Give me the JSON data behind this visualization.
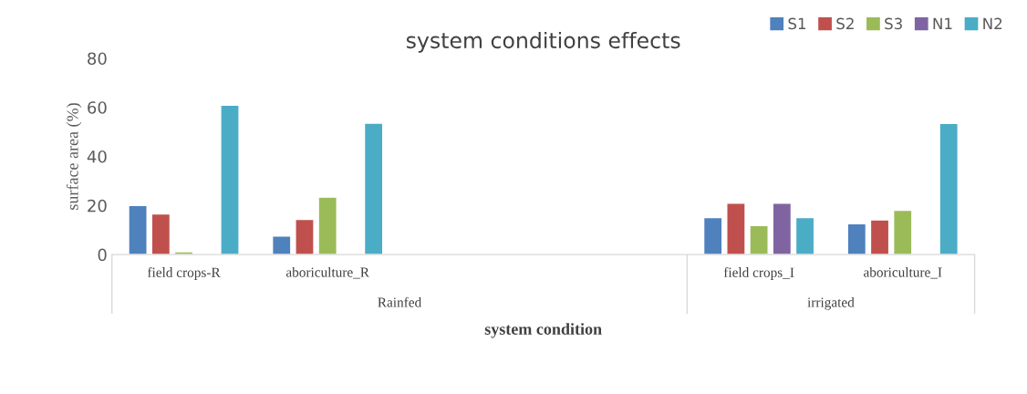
{
  "chart_data": {
    "type": "bar",
    "title": "system conditions effects",
    "ylabel": "surface area (%)",
    "xlabel": "system condition",
    "categories": [
      "field crops-R",
      "aboriculture_R",
      null,
      null,
      "field crops_I",
      "aboriculture_I"
    ],
    "series": [
      {
        "name": "S1",
        "color": "#4f81bd",
        "values": [
          20,
          7.5,
          null,
          null,
          15.1,
          12.6
        ]
      },
      {
        "name": "S2",
        "color": "#c0504d",
        "values": [
          16.6,
          14.3,
          null,
          null,
          20.9,
          14.1
        ]
      },
      {
        "name": "S3",
        "color": "#9bbb59",
        "values": [
          1.1,
          23.4,
          null,
          null,
          11.8,
          18
        ]
      },
      {
        "name": "N1",
        "color": "#8064a2",
        "values": [
          null,
          null,
          null,
          null,
          20.9,
          null
        ]
      },
      {
        "name": "N2",
        "color": "#4bacc6",
        "values": [
          60.9,
          53.6,
          null,
          null,
          15.1,
          53.5
        ]
      }
    ],
    "annotations": [
      "Rainfed",
      "irrigated"
    ],
    "ylim": [
      0,
      80
    ],
    "yticks": [
      0,
      20,
      40,
      60,
      80
    ],
    "grid": false,
    "legend": "top right"
  }
}
